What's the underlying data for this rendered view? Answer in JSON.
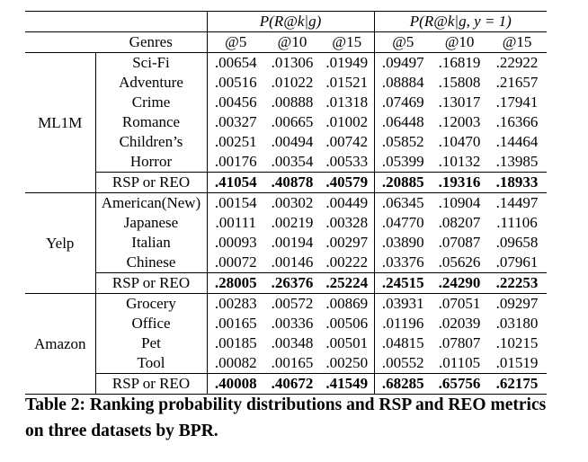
{
  "table": {
    "group_headers": [
      "P(R@k|g)",
      "P(R@k|g, y = 1)"
    ],
    "column_headers": [
      "Genres",
      "@5",
      "@10",
      "@15",
      "@5",
      "@10",
      "@15"
    ],
    "blocks": [
      {
        "dataset": "ML1M",
        "rows": [
          {
            "genre": "Sci-Fi",
            "values": [
              ".00654",
              ".01306",
              ".01949",
              ".09497",
              ".16819",
              ".22922"
            ]
          },
          {
            "genre": "Adventure",
            "values": [
              ".00516",
              ".01022",
              ".01521",
              ".08884",
              ".15808",
              ".21657"
            ]
          },
          {
            "genre": "Crime",
            "values": [
              ".00456",
              ".00888",
              ".01318",
              ".07469",
              ".13017",
              ".17941"
            ]
          },
          {
            "genre": "Romance",
            "values": [
              ".00327",
              ".00665",
              ".01002",
              ".06448",
              ".12003",
              ".16366"
            ]
          },
          {
            "genre": "Children’s",
            "values": [
              ".00251",
              ".00494",
              ".00742",
              ".05852",
              ".10470",
              ".14464"
            ]
          },
          {
            "genre": "Horror",
            "values": [
              ".00176",
              ".00354",
              ".00533",
              ".05399",
              ".10132",
              ".13985"
            ]
          }
        ],
        "metric": {
          "label": "RSP or REO",
          "values": [
            ".41054",
            ".40878",
            ".40579",
            ".20885",
            ".19316",
            ".18933"
          ]
        }
      },
      {
        "dataset": "Yelp",
        "rows": [
          {
            "genre": "American(New)",
            "values": [
              ".00154",
              ".00302",
              ".00449",
              ".06345",
              ".10904",
              ".14497"
            ]
          },
          {
            "genre": "Japanese",
            "values": [
              ".00111",
              ".00219",
              ".00328",
              ".04770",
              ".08207",
              ".11106"
            ]
          },
          {
            "genre": "Italian",
            "values": [
              ".00093",
              ".00194",
              ".00297",
              ".03890",
              ".07087",
              ".09658"
            ]
          },
          {
            "genre": "Chinese",
            "values": [
              ".00072",
              ".00146",
              ".00222",
              ".03376",
              ".05626",
              ".07961"
            ]
          }
        ],
        "metric": {
          "label": "RSP or REO",
          "values": [
            ".28005",
            ".26376",
            ".25224",
            ".24515",
            ".24290",
            ".22253"
          ]
        }
      },
      {
        "dataset": "Amazon",
        "rows": [
          {
            "genre": "Grocery",
            "values": [
              ".00283",
              ".00572",
              ".00869",
              ".03931",
              ".07051",
              ".09297"
            ]
          },
          {
            "genre": "Office",
            "values": [
              ".00165",
              ".00336",
              ".00506",
              ".01196",
              ".02039",
              ".03180"
            ]
          },
          {
            "genre": "Pet",
            "values": [
              ".00185",
              ".00348",
              ".00501",
              ".04815",
              ".07807",
              ".10215"
            ]
          },
          {
            "genre": "Tool",
            "values": [
              ".00082",
              ".00165",
              ".00250",
              ".00552",
              ".01105",
              ".01519"
            ]
          }
        ],
        "metric": {
          "label": "RSP or REO",
          "values": [
            ".40008",
            ".40672",
            ".41549",
            ".68285",
            ".65756",
            ".62175"
          ]
        }
      }
    ]
  },
  "caption": "Table 2: Ranking probability distributions and RSP and REO metrics on three datasets by BPR."
}
